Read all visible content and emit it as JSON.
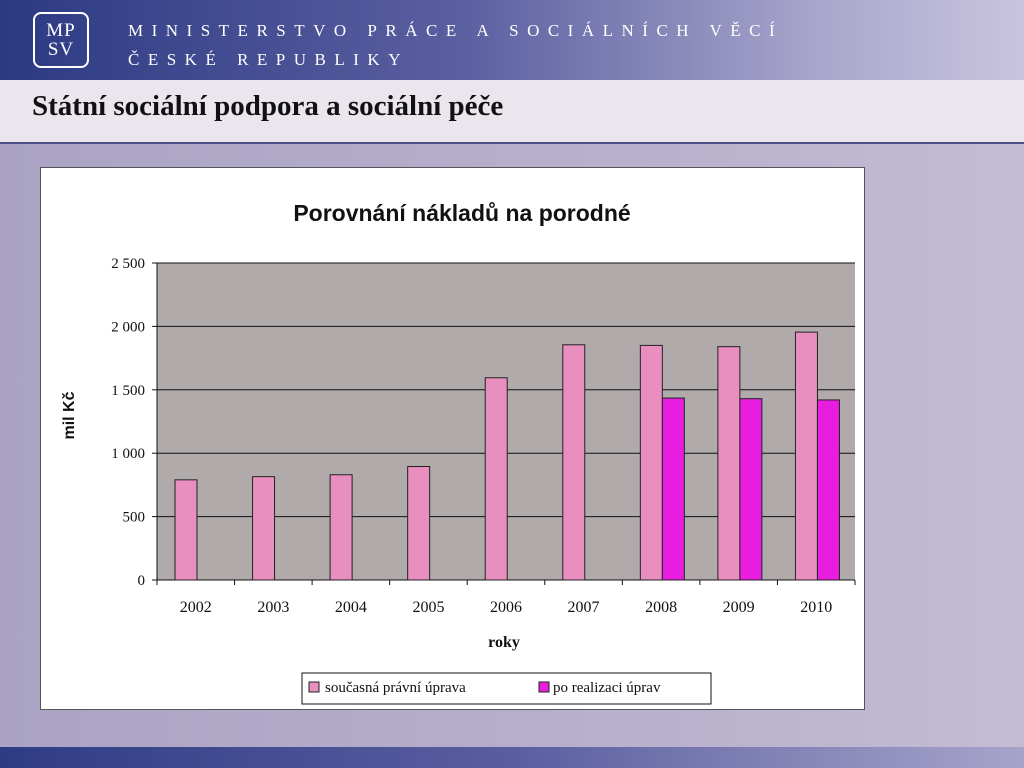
{
  "header": {
    "logo_line1": "MP",
    "logo_line2": "SV",
    "ministry_line1": "MINISTERSTVO PRÁCE A SOCIÁLNÍCH VĚCÍ",
    "ministry_line2": "ČESKÉ REPUBLIKY"
  },
  "slide": {
    "title": "Státní sociální podpora a sociální péče"
  },
  "colors": {
    "series1": "#e88fc0",
    "series2": "#e81de0",
    "plot_bg": "#b1aaab",
    "header_blue": "#2c3a82"
  },
  "chart_data": {
    "type": "bar",
    "title": "Porovnání nákladů na porodné",
    "xlabel": "roky",
    "ylabel": "mil Kč",
    "ylim": [
      0,
      2500
    ],
    "yticks": [
      0,
      500,
      1000,
      1500,
      2000,
      2500
    ],
    "ytick_labels": [
      "0",
      "500",
      "1 000",
      "1 500",
      "2 000",
      "2 500"
    ],
    "grid": true,
    "legend_position": "bottom",
    "categories": [
      "2002",
      "2003",
      "2004",
      "2005",
      "2006",
      "2007",
      "2008",
      "2009",
      "2010"
    ],
    "series": [
      {
        "name": "současná právní úprava",
        "values": [
          790,
          815,
          830,
          895,
          1595,
          1855,
          1850,
          1840,
          1955
        ]
      },
      {
        "name": "po realizaci úprav",
        "values": [
          null,
          null,
          null,
          null,
          null,
          null,
          1435,
          1430,
          1420
        ]
      }
    ]
  }
}
